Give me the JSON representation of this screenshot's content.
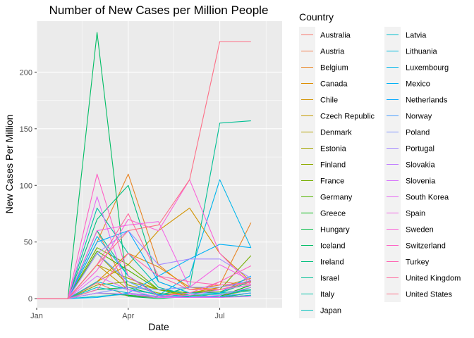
{
  "chart_data": {
    "type": "line",
    "title": "Number of New Cases per Million People",
    "xlabel": "Date",
    "ylabel": "New Cases Per Million",
    "x_ticks": [
      "Jan",
      "Apr",
      "Jul"
    ],
    "y_ticks": [
      0,
      50,
      100,
      150,
      200
    ],
    "xlim": [
      "2020-01-01",
      "2020-09-01"
    ],
    "ylim": [
      -8,
      245
    ],
    "x": [
      "2020-01-01",
      "2020-02-01",
      "2020-03-01",
      "2020-04-01",
      "2020-05-01",
      "2020-06-01",
      "2020-07-01",
      "2020-08-01"
    ],
    "grid": true,
    "legend_title": "Country",
    "legend_position": "right",
    "series": [
      {
        "name": "Australia",
        "values": [
          0,
          0,
          14,
          2,
          1,
          2,
          15,
          12
        ]
      },
      {
        "name": "Austria",
        "values": [
          0,
          0,
          60,
          8,
          4,
          3,
          10,
          15
        ]
      },
      {
        "name": "Belgium",
        "values": [
          0,
          0,
          50,
          110,
          30,
          8,
          12,
          67
        ]
      },
      {
        "name": "Canada",
        "values": [
          0,
          0,
          15,
          40,
          28,
          10,
          8,
          12
        ]
      },
      {
        "name": "Chile",
        "values": [
          0,
          0,
          15,
          30,
          60,
          80,
          40,
          15
        ]
      },
      {
        "name": "Czech Republic",
        "values": [
          0,
          0,
          30,
          8,
          4,
          5,
          10,
          18
        ]
      },
      {
        "name": "Denmark",
        "values": [
          0,
          0,
          30,
          18,
          8,
          3,
          2,
          10
        ]
      },
      {
        "name": "Estonia",
        "values": [
          0,
          0,
          40,
          12,
          5,
          1,
          2,
          8
        ]
      },
      {
        "name": "Finland",
        "values": [
          0,
          0,
          12,
          15,
          8,
          2,
          1,
          3
        ]
      },
      {
        "name": "France",
        "values": [
          0,
          0,
          45,
          30,
          8,
          5,
          8,
          38
        ]
      },
      {
        "name": "Germany",
        "values": [
          0,
          0,
          42,
          25,
          8,
          5,
          6,
          16
        ]
      },
      {
        "name": "Greece",
        "values": [
          0,
          0,
          5,
          3,
          1,
          1,
          2,
          12
        ]
      },
      {
        "name": "Hungary",
        "values": [
          0,
          0,
          8,
          10,
          3,
          1,
          1,
          5
        ]
      },
      {
        "name": "Iceland",
        "values": [
          0,
          0,
          235,
          2,
          0,
          2,
          1,
          10
        ]
      },
      {
        "name": "Ireland",
        "values": [
          0,
          0,
          70,
          100,
          15,
          5,
          5,
          15
        ]
      },
      {
        "name": "Israel",
        "values": [
          0,
          0,
          60,
          20,
          3,
          10,
          155,
          157
        ]
      },
      {
        "name": "Italy",
        "values": [
          0,
          0,
          80,
          40,
          10,
          3,
          4,
          7
        ]
      },
      {
        "name": "Japan",
        "values": [
          0,
          0,
          2,
          4,
          1,
          1,
          5,
          8
        ]
      },
      {
        "name": "Latvia",
        "values": [
          0,
          0,
          10,
          5,
          2,
          1,
          1,
          3
        ]
      },
      {
        "name": "Lithuania",
        "values": [
          0,
          0,
          15,
          8,
          4,
          2,
          2,
          5
        ]
      },
      {
        "name": "Luxembourg",
        "values": [
          0,
          0,
          55,
          20,
          3,
          20,
          105,
          45
        ]
      },
      {
        "name": "Mexico",
        "values": [
          0,
          0,
          1,
          5,
          20,
          35,
          48,
          45
        ]
      },
      {
        "name": "Netherlands",
        "values": [
          0,
          0,
          50,
          60,
          15,
          5,
          5,
          20
        ]
      },
      {
        "name": "Norway",
        "values": [
          0,
          0,
          40,
          15,
          3,
          1,
          2,
          5
        ]
      },
      {
        "name": "Poland",
        "values": [
          0,
          0,
          5,
          10,
          8,
          10,
          10,
          16
        ]
      },
      {
        "name": "Portugal",
        "values": [
          0,
          0,
          40,
          60,
          30,
          35,
          35,
          18
        ]
      },
      {
        "name": "Slovakia",
        "values": [
          0,
          0,
          5,
          4,
          1,
          1,
          3,
          10
        ]
      },
      {
        "name": "Slovenia",
        "values": [
          0,
          0,
          20,
          8,
          1,
          3,
          8,
          12
        ]
      },
      {
        "name": "South Korea",
        "values": [
          0,
          0,
          90,
          5,
          1,
          1,
          1,
          2
        ]
      },
      {
        "name": "Spain",
        "values": [
          0,
          0,
          60,
          65,
          68,
          10,
          30,
          16
        ]
      },
      {
        "name": "Sweden",
        "values": [
          0,
          0,
          25,
          70,
          60,
          105,
          40,
          12
        ]
      },
      {
        "name": "Switzerland",
        "values": [
          0,
          0,
          110,
          20,
          2,
          5,
          15,
          29
        ]
      },
      {
        "name": "Turkey",
        "values": [
          0,
          0,
          8,
          40,
          20,
          15,
          12,
          14
        ]
      },
      {
        "name": "United Kingdom",
        "values": [
          0,
          0,
          30,
          75,
          20,
          8,
          8,
          15
        ]
      },
      {
        "name": "United States",
        "values": [
          0,
          0,
          30,
          60,
          65,
          105,
          227,
          227
        ]
      }
    ]
  }
}
